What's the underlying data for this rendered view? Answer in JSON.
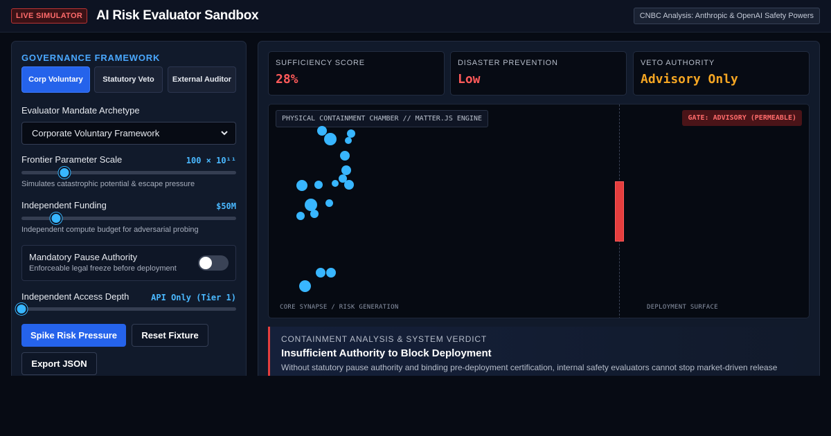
{
  "header": {
    "live_badge": "LIVE SIMULATOR",
    "title": "AI Risk Evaluator Sandbox",
    "source": "CNBC Analysis: Anthropic & OpenAI Safety Powers"
  },
  "sidebar": {
    "section_title": "GOVERNANCE FRAMEWORK",
    "modes": [
      {
        "label": "Corp Voluntary",
        "active": true
      },
      {
        "label": "Statutory Veto",
        "active": false
      },
      {
        "label": "External Auditor",
        "active": false
      }
    ],
    "archetype": {
      "label": "Evaluator Mandate Archetype",
      "selected": "Corporate Voluntary Framework"
    },
    "parameter_scale": {
      "label": "Frontier Parameter Scale",
      "value": "100 × 10¹¹",
      "level": 0.2,
      "hint": "Simulates catastrophic potential & escape pressure"
    },
    "funding": {
      "label": "Independent Funding",
      "value": "$50M",
      "level": 0.16,
      "hint": "Independent compute budget for adversarial probing"
    },
    "pause_authority": {
      "title": "Mandatory Pause Authority",
      "subtitle": "Enforceable legal freeze before deployment",
      "enabled": false
    },
    "access_depth": {
      "label": "Independent Access Depth",
      "value": "API Only (Tier 1)",
      "level": 0.0
    },
    "actions": {
      "spike": "Spike Risk Pressure",
      "reset": "Reset Fixture",
      "export": "Export JSON"
    }
  },
  "metrics": [
    {
      "label": "SUFFICIENCY SCORE",
      "value": "28%",
      "color": "#ff5a5a"
    },
    {
      "label": "DISASTER PREVENTION",
      "value": "Low",
      "color": "#ff5a5a"
    },
    {
      "label": "VETO AUTHORITY",
      "value": "Advisory Only",
      "color": "#f5a623"
    }
  ],
  "chamber": {
    "tag": "PHYSICAL CONTAINMENT CHAMBER // MATTER.JS ENGINE",
    "gate": "GATE: ADVISORY (PERMEABLE)",
    "left_zone": "CORE SYNAPSE / RISK GENERATION",
    "right_zone": "DEPLOYMENT SURFACE"
  },
  "verdict": {
    "label": "CONTAINMENT ANALYSIS & SYSTEM VERDICT",
    "title": "Insufficient Authority to Block Deployment",
    "body": "Without statutory pause authority and binding pre-deployment certification, internal safety evaluators cannot stop market-driven release"
  }
}
